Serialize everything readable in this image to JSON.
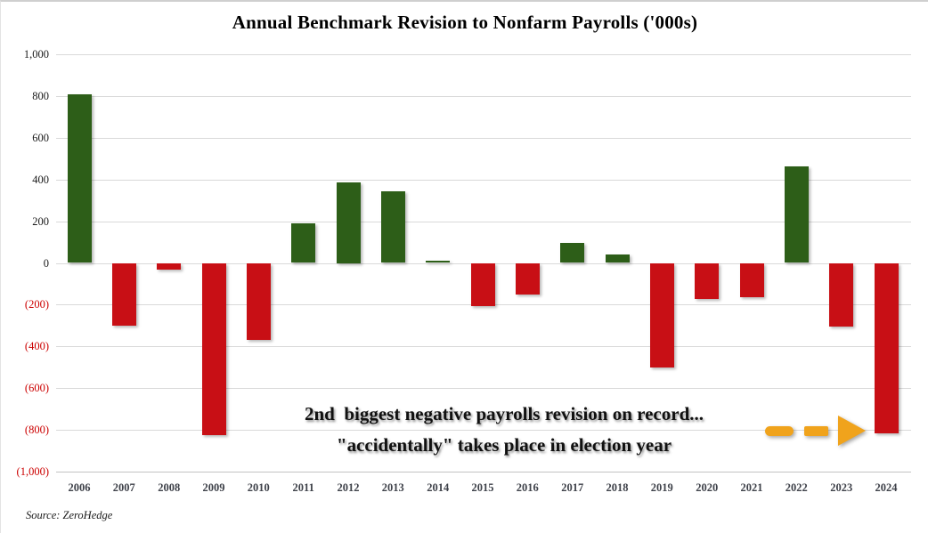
{
  "page": {
    "source_note": "Source: ZeroHedge"
  },
  "annotation": {
    "line1": "2nd  biggest negative payrolls revision on record...",
    "line2": "\"accidentally\" takes place in election year"
  },
  "chart_data": {
    "type": "bar",
    "title": "Annual Benchmark Revision to Nonfarm Payrolls ('000s)",
    "units": "thousands of payrolls",
    "categories": [
      "2006",
      "2007",
      "2008",
      "2009",
      "2010",
      "2011",
      "2012",
      "2013",
      "2014",
      "2015",
      "2016",
      "2017",
      "2018",
      "2019",
      "2020",
      "2021",
      "2022",
      "2023",
      "2024"
    ],
    "values": [
      810,
      -300,
      -30,
      -824,
      -370,
      190,
      386,
      345,
      10,
      -208,
      -150,
      95,
      40,
      -501,
      -173,
      -165,
      462,
      -306,
      -818
    ],
    "ylim": [
      -1000,
      1000
    ],
    "y_tick_interval": 200,
    "y_tick_labels": [
      "1,000",
      "800",
      "600",
      "400",
      "200",
      "0",
      "(200)",
      "(400)",
      "(600)",
      "(800)",
      "(1,000)"
    ],
    "grid": true,
    "legend": false,
    "annotation_arrow_target": "2024",
    "colors": {
      "positive_bar": "#2d5e18",
      "negative_bar": "#c80f15",
      "positive_tick_label": "#1a1a1a",
      "negative_tick_label": "#cc0000",
      "x_tick_label": "#3f424a",
      "gridline": "#d9d9d9",
      "axis_line": "#c2c2c2",
      "arrow": "#f0a31c"
    }
  }
}
